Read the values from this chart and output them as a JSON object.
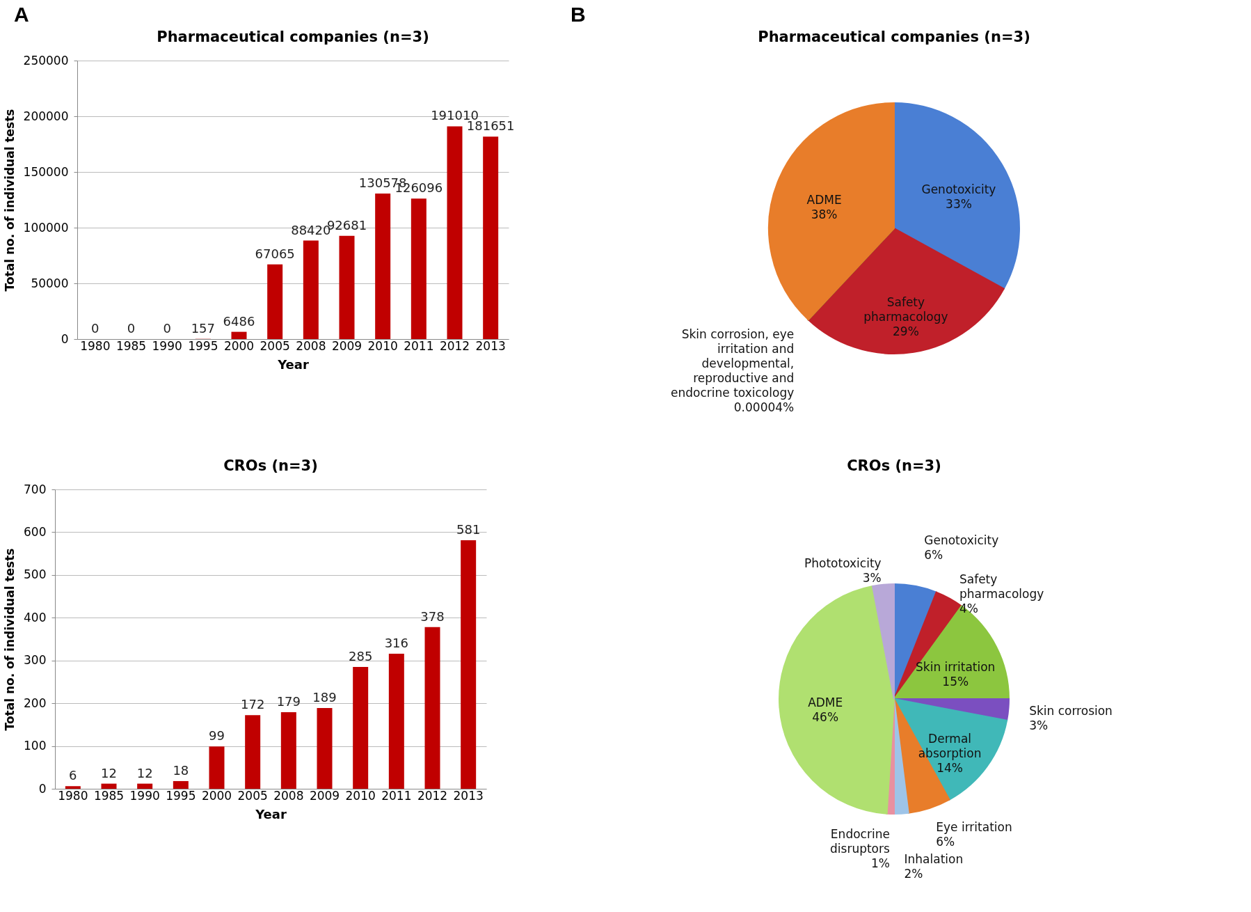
{
  "chart_data": [
    {
      "type": "bar",
      "title": "Pharmaceutical companies (n=3)",
      "annotations": [
        "A"
      ],
      "xlabel": "Year",
      "ylabel": "Total no. of individual tests",
      "categories": [
        "1980",
        "1985",
        "1990",
        "1995",
        "2000",
        "2005",
        "2008",
        "2009",
        "2010",
        "2011",
        "2012",
        "2013"
      ],
      "values": [
        0,
        0,
        0,
        157,
        6486,
        67065,
        88420,
        92681,
        130578,
        126096,
        191010,
        181651
      ],
      "color": "#c00000",
      "ylim": [
        0,
        250000
      ],
      "yticks": [
        0,
        50000,
        100000,
        150000,
        200000,
        250000
      ],
      "grid": "y",
      "data_labels": true
    },
    {
      "type": "bar",
      "title": "CROs (n=3)",
      "xlabel": "Year",
      "ylabel": "Total no. of individual tests",
      "categories": [
        "1980",
        "1985",
        "1990",
        "1995",
        "2000",
        "2005",
        "2008",
        "2009",
        "2010",
        "2011",
        "2012",
        "2013"
      ],
      "values": [
        6,
        12,
        12,
        18,
        99,
        172,
        179,
        189,
        285,
        316,
        378,
        581
      ],
      "color": "#c00000",
      "ylim": [
        0,
        700
      ],
      "yticks": [
        0,
        100,
        200,
        300,
        400,
        500,
        600,
        700
      ],
      "grid": "y",
      "data_labels": true
    },
    {
      "type": "pie",
      "title": "Pharmaceutical companies (n=3)",
      "annotations": [
        "B"
      ],
      "categories": [
        "Genotoxicity",
        "Safety pharmacology",
        "Skin corrosion, eye irritation and developmental, reproductive and endocrine toxicology",
        "ADME"
      ],
      "values": [
        33,
        29,
        4e-05,
        38
      ],
      "colors": [
        "#4a7fd4",
        "#c0202a",
        "#3a8a3a",
        "#e87d2a"
      ],
      "value_labels": [
        "33%",
        "29%",
        "0.00004%",
        "38%"
      ]
    },
    {
      "type": "pie",
      "title": "CROs (n=3)",
      "categories": [
        "Genotoxicity",
        "Safety pharmacology",
        "Skin irritation",
        "Skin corrosion",
        "Dermal absorption",
        "Eye irritation",
        "Inhalation",
        "Endocrine disruptors",
        "ADME",
        "Phototoxicity"
      ],
      "values": [
        6,
        4,
        15,
        3,
        14,
        6,
        2,
        1,
        46,
        3
      ],
      "colors": [
        "#4a7fd4",
        "#c0202a",
        "#8cc63f",
        "#7b4fc0",
        "#40b8b8",
        "#e87d2a",
        "#9ec4e8",
        "#e890a0",
        "#b0e070",
        "#b8a8d8"
      ],
      "value_labels": [
        "6%",
        "4%",
        "15%",
        "3%",
        "14%",
        "6%",
        "2%",
        "1%",
        "46%",
        "3%"
      ]
    }
  ]
}
